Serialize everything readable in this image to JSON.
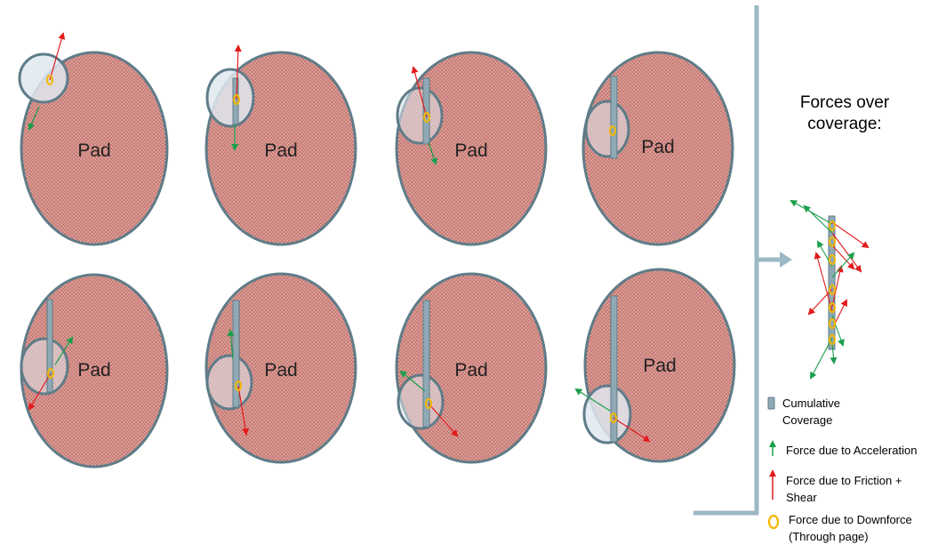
{
  "colors": {
    "pad_fill": "#c97a74",
    "pad_stroke": "#5f7c88",
    "disk_fill": "#dfe8ee",
    "coverage": "#8fa9b5",
    "acceleration": "#1b9e4b",
    "friction": "#e31a1c",
    "downforce": "#f5b800"
  },
  "panels": [
    {
      "pad_label": "Pad"
    },
    {
      "pad_label": "Pad"
    },
    {
      "pad_label": "Pad"
    },
    {
      "pad_label": "Pad"
    },
    {
      "pad_label": "Pad"
    },
    {
      "pad_label": "Pad"
    },
    {
      "pad_label": "Pad"
    },
    {
      "pad_label": "Pad"
    }
  ],
  "side": {
    "title_line1": "Forces over",
    "title_line2": "coverage:"
  },
  "legend": {
    "coverage_line1": "Cumulative",
    "coverage_line2": "Coverage",
    "acceleration": "Force due to Acceleration",
    "friction_line1": "Force due to Friction +",
    "friction_line2": "Shear",
    "downforce_line1": "Force due to Downforce",
    "downforce_line2": "(Through page)"
  }
}
